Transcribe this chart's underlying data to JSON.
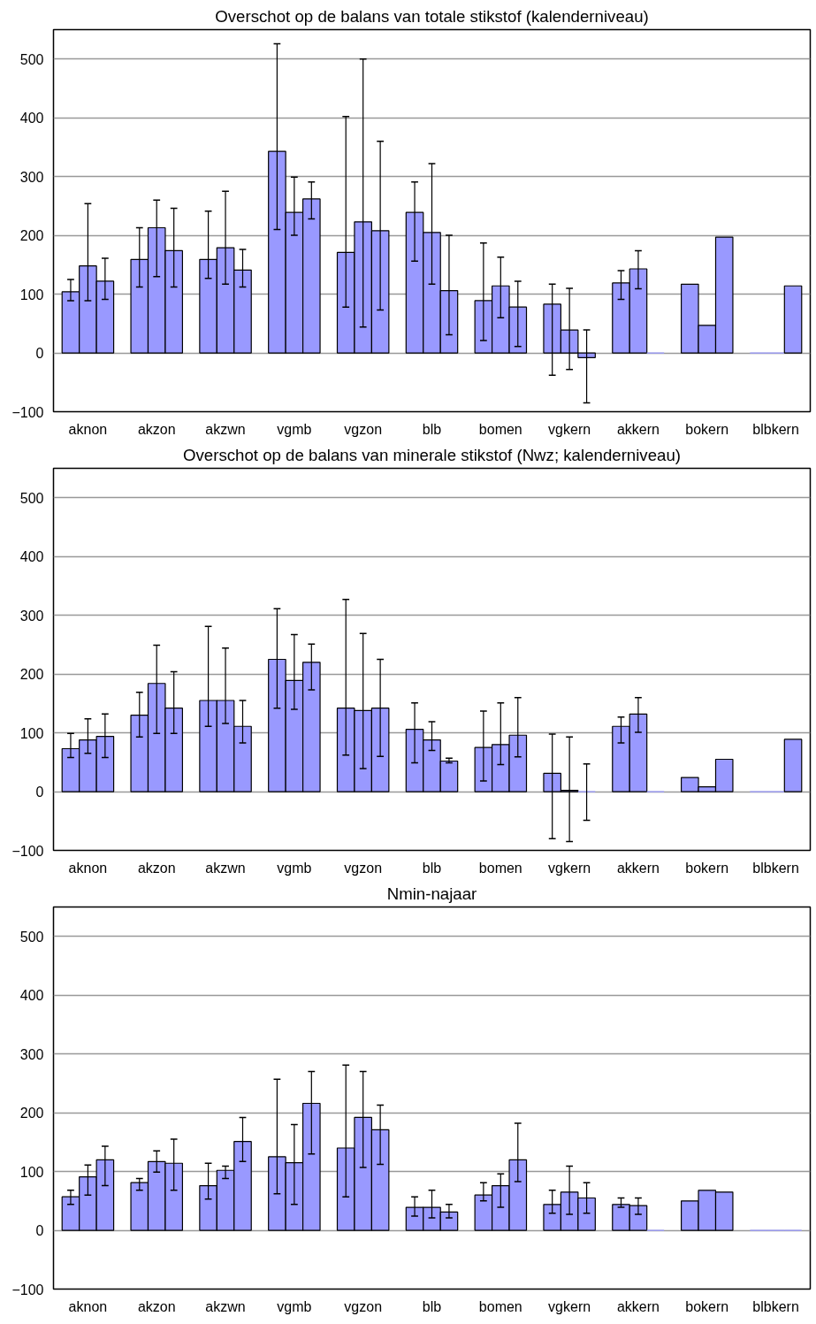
{
  "chart_data": [
    {
      "type": "bar",
      "title": "Overschot op de balans van totale stikstof (kalenderniveau)",
      "categories": [
        "aknon",
        "akzon",
        "akzwn",
        "vgmb",
        "vgzon",
        "blb",
        "bomen",
        "vgkern",
        "akkern",
        "bokern",
        "blbkern"
      ],
      "ylim": [
        -100,
        550
      ],
      "yticks": [
        -100,
        0,
        100,
        200,
        300,
        400,
        500
      ],
      "grid": "y",
      "series": [
        {
          "color": "#9999ff",
          "values": [
            104,
            159,
            159,
            343,
            171,
            239,
            89,
            83,
            119,
            117,
            0
          ],
          "errors": [
            [
              89,
              125
            ],
            [
              112,
              213
            ],
            [
              127,
              241
            ],
            [
              210,
              526
            ],
            [
              78,
              402
            ],
            [
              156,
              291
            ],
            [
              21,
              187
            ],
            [
              -38,
              117
            ],
            [
              91,
              140
            ],
            null,
            null
          ]
        },
        {
          "color": "#9999ff",
          "values": [
            148,
            213,
            179,
            239,
            223,
            205,
            114,
            39,
            143,
            47,
            0
          ],
          "errors": [
            [
              89,
              254
            ],
            [
              130,
              260
            ],
            [
              117,
              275
            ],
            [
              200,
              299
            ],
            [
              44,
              500
            ],
            [
              117,
              322
            ],
            [
              60,
              163
            ],
            [
              -28,
              110
            ],
            [
              109,
              174
            ],
            null,
            null
          ]
        },
        {
          "color": "#9999ff",
          "values": [
            122,
            174,
            141,
            262,
            208,
            106,
            78,
            -8,
            0,
            197,
            114
          ],
          "errors": [
            [
              91,
              161
            ],
            [
              112,
              246
            ],
            [
              112,
              176
            ],
            [
              228,
              291
            ],
            [
              73,
              360
            ],
            [
              31,
              200
            ],
            [
              11,
              122
            ],
            [
              -85,
              39
            ],
            null,
            null,
            null
          ]
        }
      ]
    },
    {
      "type": "bar",
      "title": "Overschot op de balans van minerale stikstof (Nwz; kalenderniveau)",
      "categories": [
        "aknon",
        "akzon",
        "akzwn",
        "vgmb",
        "vgzon",
        "blb",
        "bomen",
        "vgkern",
        "akkern",
        "bokern",
        "blbkern"
      ],
      "ylim": [
        -100,
        550
      ],
      "yticks": [
        -100,
        0,
        100,
        200,
        300,
        400,
        500
      ],
      "grid": "y",
      "series": [
        {
          "color": "#9999ff",
          "values": [
            73,
            130,
            155,
            225,
            142,
            106,
            75,
            31,
            111,
            24,
            0
          ],
          "errors": [
            [
              58,
              99
            ],
            [
              93,
              169
            ],
            [
              111,
              281
            ],
            [
              142,
              311
            ],
            [
              62,
              327
            ],
            [
              49,
              151
            ],
            [
              18,
              137
            ],
            [
              -80,
              98
            ],
            [
              83,
              127
            ],
            null,
            null
          ]
        },
        {
          "color": "#9999ff",
          "values": [
            88,
            184,
            155,
            189,
            138,
            88,
            80,
            2,
            132,
            8,
            0
          ],
          "errors": [
            [
              65,
              124
            ],
            [
              99,
              249
            ],
            [
              116,
              244
            ],
            [
              140,
              267
            ],
            [
              39,
              269
            ],
            [
              70,
              119
            ],
            [
              46,
              151
            ],
            [
              -85,
              93
            ],
            [
              101,
              160
            ],
            null,
            null
          ]
        },
        {
          "color": "#9999ff",
          "values": [
            94,
            142,
            111,
            220,
            142,
            52,
            96,
            0,
            0,
            55,
            89
          ],
          "errors": [
            [
              58,
              132
            ],
            [
              99,
              204
            ],
            [
              83,
              155
            ],
            [
              173,
              251
            ],
            [
              60,
              225
            ],
            [
              49,
              57
            ],
            [
              59,
              160
            ],
            [
              -49,
              47
            ],
            null,
            null,
            null
          ]
        }
      ]
    },
    {
      "type": "bar",
      "title": "Nmin-najaar",
      "categories": [
        "aknon",
        "akzon",
        "akzwn",
        "vgmb",
        "vgzon",
        "blb",
        "bomen",
        "vgkern",
        "akkern",
        "bokern",
        "blbkern"
      ],
      "ylim": [
        -100,
        550
      ],
      "yticks": [
        -100,
        0,
        100,
        200,
        300,
        400,
        500
      ],
      "grid": "y",
      "series": [
        {
          "color": "#9999ff",
          "values": [
            57,
            81,
            76,
            125,
            140,
            39,
            60,
            44,
            44,
            50,
            0
          ],
          "errors": [
            [
              44,
              68
            ],
            [
              68,
              88
            ],
            [
              53,
              114
            ],
            [
              62,
              257
            ],
            [
              57,
              281
            ],
            [
              24,
              57
            ],
            [
              50,
              81
            ],
            [
              29,
              68
            ],
            [
              39,
              55
            ],
            null,
            null
          ]
        },
        {
          "color": "#9999ff",
          "values": [
            91,
            117,
            102,
            115,
            192,
            39,
            76,
            65,
            42,
            68,
            0
          ],
          "errors": [
            [
              60,
              111
            ],
            [
              99,
              135
            ],
            [
              88,
              109
            ],
            [
              44,
              180
            ],
            [
              107,
              270
            ],
            [
              21,
              68
            ],
            [
              39,
              96
            ],
            [
              27,
              109
            ],
            [
              27,
              55
            ],
            null,
            null
          ]
        },
        {
          "color": "#9999ff",
          "values": [
            120,
            114,
            151,
            216,
            171,
            31,
            120,
            55,
            0,
            65,
            0
          ],
          "errors": [
            [
              76,
              143
            ],
            [
              68,
              155
            ],
            [
              117,
              192
            ],
            [
              130,
              270
            ],
            [
              112,
              213
            ],
            [
              21,
              44
            ],
            [
              83,
              182
            ],
            [
              29,
              81
            ],
            null,
            null,
            null
          ]
        }
      ]
    }
  ]
}
